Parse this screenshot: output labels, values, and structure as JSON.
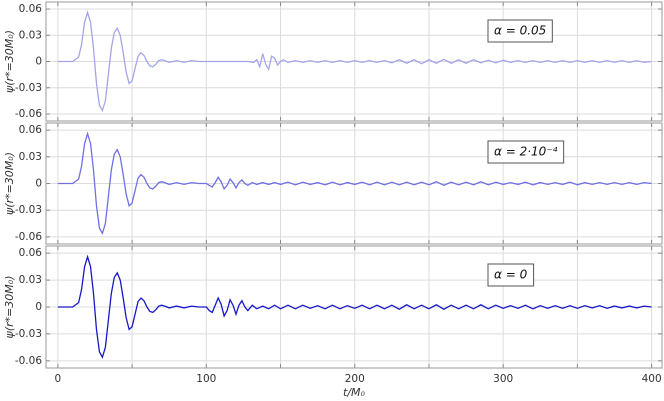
{
  "chart_data": [
    {
      "type": "line",
      "ylabel": "ψ(r*=30M₀)",
      "annotation": "α = 0.05",
      "color": "#a4a4ec",
      "xlim": [
        -8,
        407
      ],
      "ylim": [
        -0.068,
        0.068
      ],
      "yticks": [
        0.06,
        0.03,
        0,
        -0.03,
        -0.06
      ],
      "grid": true,
      "x": [
        0,
        10,
        14,
        16,
        18,
        20,
        22,
        24,
        26,
        28,
        30,
        32,
        34,
        36,
        38,
        40,
        42,
        44,
        46,
        48,
        50,
        52,
        54,
        56,
        58,
        60,
        62,
        64,
        66,
        68,
        70,
        72,
        75,
        80,
        85,
        90,
        95,
        100,
        110,
        120,
        128,
        132,
        134,
        136,
        138,
        140,
        142,
        144,
        146,
        148,
        150,
        152,
        155,
        160,
        165,
        170,
        175,
        180,
        185,
        190,
        195,
        200,
        205,
        210,
        215,
        220,
        225,
        230,
        235,
        240,
        245,
        250,
        255,
        260,
        265,
        270,
        275,
        280,
        285,
        290,
        295,
        300,
        305,
        310,
        315,
        320,
        325,
        330,
        335,
        340,
        345,
        350,
        355,
        360,
        365,
        370,
        375,
        380,
        385,
        390,
        395,
        400
      ],
      "values": [
        0,
        0,
        0.005,
        0.02,
        0.045,
        0.056,
        0.045,
        0.015,
        -0.025,
        -0.05,
        -0.056,
        -0.045,
        -0.015,
        0.015,
        0.033,
        0.038,
        0.03,
        0.01,
        -0.012,
        -0.025,
        -0.022,
        -0.008,
        0.006,
        0.01,
        0.007,
        0,
        -0.005,
        -0.006,
        -0.003,
        0.001,
        0.002,
        0.001,
        -0.001,
        0.001,
        -0.001,
        0.001,
        0,
        0,
        0,
        0,
        0,
        -0.001,
        0.002,
        -0.006,
        0.009,
        -0.003,
        -0.009,
        0.006,
        0.004,
        -0.004,
        0,
        0.002,
        -0.001,
        0.001,
        -0.001,
        0.001,
        -0.001,
        0.001,
        -0.001,
        0.001,
        -0.001,
        0.001,
        -0.001,
        0.001,
        -0.001,
        0.001,
        -0.0015,
        0.002,
        -0.002,
        0.002,
        -0.0025,
        0.002,
        -0.002,
        0.0025,
        -0.002,
        0.002,
        -0.002,
        0.002,
        -0.0015,
        0.0015,
        -0.0015,
        0.0015,
        -0.001,
        0.001,
        -0.001,
        0.001,
        -0.001,
        0.001,
        -0.001,
        0.001,
        -0.001,
        0.001,
        -0.001,
        0.001,
        -0.001,
        0.001,
        -0.001,
        0.001,
        -0.001,
        0.001,
        -0.001,
        0
      ]
    },
    {
      "type": "line",
      "ylabel": "ψ(r*=30M₀)",
      "annotation": "α = 2·10⁻⁴",
      "color": "#6f6fe6",
      "xlim": [
        -8,
        407
      ],
      "ylim": [
        -0.068,
        0.068
      ],
      "yticks": [
        0.06,
        0.03,
        0,
        -0.03,
        -0.06
      ],
      "grid": true,
      "x": [
        0,
        10,
        14,
        16,
        18,
        20,
        22,
        24,
        26,
        28,
        30,
        32,
        34,
        36,
        38,
        40,
        42,
        44,
        46,
        48,
        50,
        52,
        54,
        56,
        58,
        60,
        62,
        64,
        66,
        68,
        70,
        72,
        75,
        80,
        85,
        90,
        95,
        100,
        102,
        104,
        106,
        108,
        110,
        112,
        114,
        116,
        118,
        120,
        122,
        124,
        126,
        128,
        131,
        134,
        138,
        142,
        146,
        150,
        155,
        160,
        165,
        170,
        175,
        180,
        185,
        190,
        195,
        200,
        205,
        210,
        215,
        220,
        225,
        230,
        235,
        240,
        245,
        250,
        255,
        260,
        265,
        270,
        275,
        280,
        285,
        290,
        295,
        300,
        305,
        310,
        315,
        320,
        325,
        330,
        335,
        340,
        345,
        350,
        355,
        360,
        365,
        370,
        375,
        380,
        385,
        390,
        395,
        400
      ],
      "values": [
        0,
        0,
        0.005,
        0.02,
        0.045,
        0.056,
        0.045,
        0.015,
        -0.025,
        -0.05,
        -0.056,
        -0.045,
        -0.015,
        0.015,
        0.033,
        0.038,
        0.03,
        0.01,
        -0.012,
        -0.025,
        -0.022,
        -0.008,
        0.006,
        0.01,
        0.007,
        0,
        -0.005,
        -0.006,
        -0.003,
        0.001,
        0.002,
        0.001,
        -0.001,
        0.001,
        -0.001,
        0.001,
        0,
        0,
        -0.002,
        -0.004,
        0.001,
        0.007,
        0.002,
        -0.006,
        -0.002,
        0.005,
        0.001,
        -0.005,
        0.001,
        0.004,
        0,
        -0.002,
        0.001,
        -0.001,
        0.001,
        -0.001,
        0.001,
        -0.001,
        0.0015,
        -0.0015,
        0.0015,
        -0.001,
        0.001,
        -0.0015,
        0.0015,
        -0.0015,
        0.001,
        -0.001,
        0.0015,
        -0.0015,
        0.0015,
        -0.0015,
        0.0015,
        -0.0015,
        0.0015,
        -0.0015,
        0.0015,
        -0.0015,
        0.002,
        -0.002,
        0.0015,
        -0.0015,
        0.0015,
        -0.0015,
        0.002,
        -0.0015,
        0.0015,
        -0.001,
        0.001,
        -0.001,
        0.0015,
        -0.0015,
        0.001,
        -0.001,
        0.001,
        -0.001,
        0.0015,
        -0.0015,
        0.001,
        -0.001,
        0.001,
        -0.001,
        0.001,
        -0.001,
        0.001,
        -0.001,
        0.001,
        0
      ]
    },
    {
      "type": "line",
      "ylabel": "ψ(r*=30M₀)",
      "annotation": "α = 0",
      "color": "#1818c8",
      "xlabel": "t/M₀",
      "xlim": [
        -8,
        407
      ],
      "ylim": [
        -0.068,
        0.068
      ],
      "yticks": [
        0.06,
        0.03,
        0,
        -0.03,
        -0.06
      ],
      "grid": true,
      "xticks": [
        0,
        100,
        200,
        300,
        400
      ],
      "x_minor_ticks": [
        50,
        150,
        250,
        350
      ],
      "x": [
        0,
        10,
        14,
        16,
        18,
        20,
        22,
        24,
        26,
        28,
        30,
        32,
        34,
        36,
        38,
        40,
        42,
        44,
        46,
        48,
        50,
        52,
        54,
        56,
        58,
        60,
        62,
        64,
        66,
        68,
        70,
        72,
        75,
        80,
        85,
        90,
        95,
        100,
        102,
        104,
        106,
        108,
        110,
        112,
        114,
        116,
        118,
        120,
        122,
        124,
        126,
        128,
        131,
        134,
        138,
        142,
        146,
        150,
        155,
        160,
        165,
        170,
        175,
        180,
        185,
        190,
        195,
        200,
        205,
        210,
        215,
        220,
        225,
        230,
        235,
        240,
        245,
        250,
        255,
        260,
        265,
        270,
        275,
        280,
        285,
        290,
        295,
        300,
        305,
        310,
        315,
        320,
        325,
        330,
        335,
        340,
        345,
        350,
        355,
        360,
        365,
        370,
        375,
        380,
        385,
        390,
        395,
        400
      ],
      "values": [
        0,
        0,
        0.005,
        0.02,
        0.045,
        0.056,
        0.045,
        0.015,
        -0.025,
        -0.05,
        -0.056,
        -0.045,
        -0.015,
        0.015,
        0.033,
        0.038,
        0.03,
        0.01,
        -0.012,
        -0.025,
        -0.022,
        -0.008,
        0.006,
        0.01,
        0.007,
        0,
        -0.005,
        -0.006,
        -0.003,
        0.001,
        0.002,
        0.001,
        -0.001,
        0.001,
        -0.001,
        0.001,
        0,
        0,
        -0.004,
        -0.006,
        0.002,
        0.01,
        0.003,
        -0.01,
        -0.004,
        0.008,
        0.002,
        -0.008,
        0.002,
        0.007,
        0,
        -0.004,
        0.002,
        -0.002,
        0.001,
        -0.002,
        0.002,
        -0.002,
        0.002,
        -0.002,
        0.002,
        -0.0015,
        0.0015,
        -0.002,
        0.002,
        -0.002,
        0.0015,
        -0.0015,
        0.002,
        -0.002,
        0.002,
        -0.002,
        0.002,
        -0.0025,
        0.0025,
        -0.002,
        0.002,
        -0.002,
        0.0025,
        -0.0025,
        0.002,
        -0.002,
        0.002,
        -0.002,
        0.0025,
        -0.002,
        0.002,
        -0.0015,
        0.0015,
        -0.0015,
        0.002,
        -0.002,
        0.0015,
        -0.0015,
        0.0015,
        -0.0015,
        0.0015,
        -0.0015,
        0.0015,
        -0.001,
        0.0015,
        -0.0015,
        0.001,
        -0.001,
        0.001,
        -0.001,
        0.001,
        0
      ]
    }
  ]
}
